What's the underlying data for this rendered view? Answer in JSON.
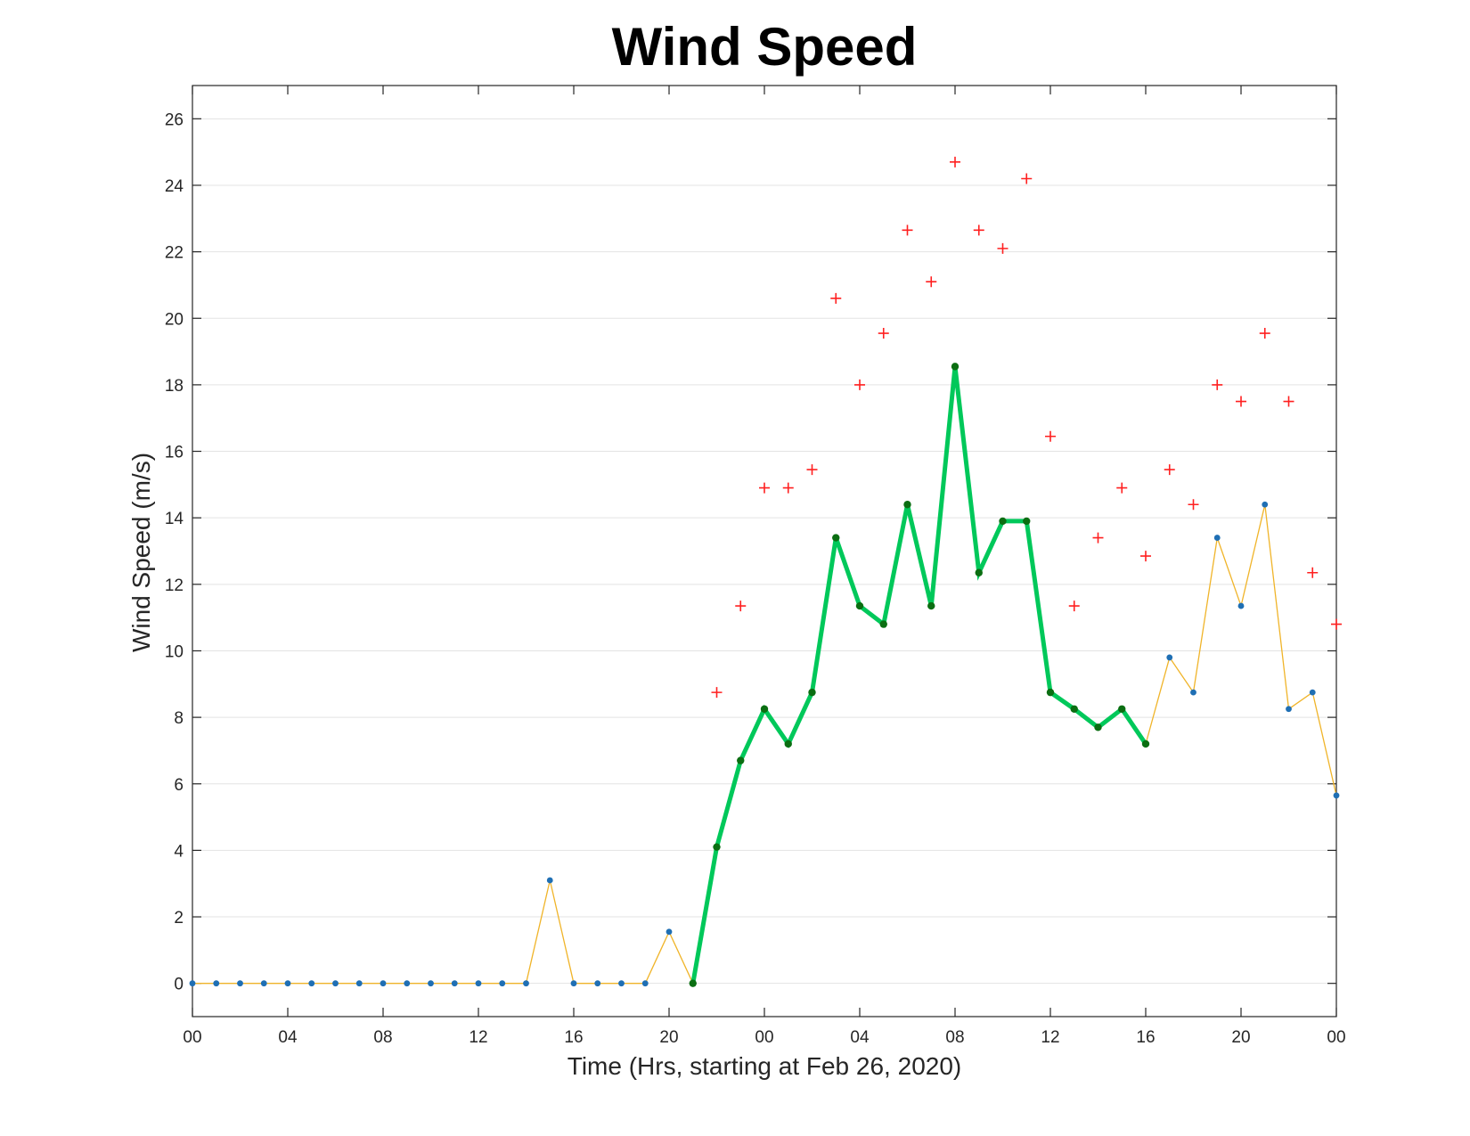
{
  "chart_data": {
    "type": "line",
    "title": "Wind Speed",
    "xlabel": "Time (Hrs, starting at Feb 26, 2020)",
    "ylabel": "Wind Speed (m/s)",
    "x_unit": "hours from Feb 26, 2020 00:00",
    "xlim": [
      0,
      48
    ],
    "ylim": [
      -1,
      27
    ],
    "x_ticks": [
      0,
      4,
      8,
      12,
      16,
      20,
      24,
      28,
      32,
      36,
      40,
      44,
      48
    ],
    "x_tick_labels": [
      "00",
      "04",
      "08",
      "12",
      "16",
      "20",
      "00",
      "04",
      "08",
      "12",
      "16",
      "20",
      "00"
    ],
    "y_ticks": [
      0,
      2,
      4,
      6,
      8,
      10,
      12,
      14,
      16,
      18,
      20,
      22,
      24,
      26
    ],
    "y_tick_labels": [
      "0",
      "2",
      "4",
      "6",
      "8",
      "10",
      "12",
      "14",
      "16",
      "18",
      "20",
      "22",
      "24",
      "26"
    ],
    "grid": "horizontal",
    "series": [
      {
        "style": "thin-line-with-dots",
        "line_color": "#f0b429",
        "marker_color": "#1f6fb4",
        "x": [
          0,
          1,
          2,
          3,
          4,
          5,
          6,
          7,
          8,
          9,
          10,
          11,
          12,
          13,
          14,
          15,
          16,
          17,
          18,
          19,
          20,
          21,
          22,
          23,
          24,
          25,
          26,
          27,
          28,
          29,
          30,
          31,
          32,
          33,
          34,
          35,
          36,
          37,
          38,
          39,
          40,
          41,
          42,
          43,
          44,
          45,
          46,
          47,
          48
        ],
        "values": [
          0,
          0,
          0,
          0,
          0,
          0,
          0,
          0,
          0,
          0,
          0,
          0,
          0,
          0,
          0,
          3.1,
          0,
          0,
          0,
          0,
          1.55,
          0,
          4.1,
          6.7,
          8.25,
          7.2,
          8.75,
          13.4,
          11.35,
          10.8,
          14.4,
          11.35,
          18.55,
          12.35,
          13.9,
          13.9,
          8.75,
          8.25,
          7.7,
          8.25,
          7.2,
          9.8,
          8.75,
          13.4,
          11.35,
          14.4,
          8.25,
          8.75,
          5.65
        ]
      },
      {
        "style": "thick-line-with-dots",
        "line_color": "#00c85a",
        "marker_color": "#0b6e12",
        "x": [
          21,
          22,
          23,
          24,
          25,
          26,
          27,
          28,
          29,
          30,
          31,
          32,
          33,
          34,
          35,
          36,
          37,
          38,
          39,
          40
        ],
        "values": [
          0,
          4.1,
          6.7,
          8.25,
          7.2,
          8.75,
          13.4,
          11.35,
          10.8,
          14.4,
          11.35,
          18.55,
          12.35,
          13.9,
          13.9,
          8.75,
          8.25,
          7.7,
          8.25,
          7.2
        ]
      },
      {
        "style": "plus-markers",
        "marker_color": "#ff2020",
        "x": [
          22,
          23,
          24,
          25,
          26,
          27,
          28,
          29,
          30,
          31,
          32,
          33,
          34,
          35,
          36,
          37,
          38,
          39,
          40,
          41,
          42,
          43,
          44,
          45,
          46,
          47,
          48
        ],
        "values": [
          8.75,
          11.35,
          14.9,
          14.9,
          15.45,
          20.6,
          18.0,
          19.55,
          22.65,
          21.1,
          24.7,
          22.65,
          22.1,
          24.2,
          16.45,
          11.35,
          13.4,
          14.9,
          12.85,
          15.45,
          14.4,
          18.0,
          17.5,
          19.55,
          17.5,
          12.35,
          10.8
        ]
      }
    ]
  }
}
